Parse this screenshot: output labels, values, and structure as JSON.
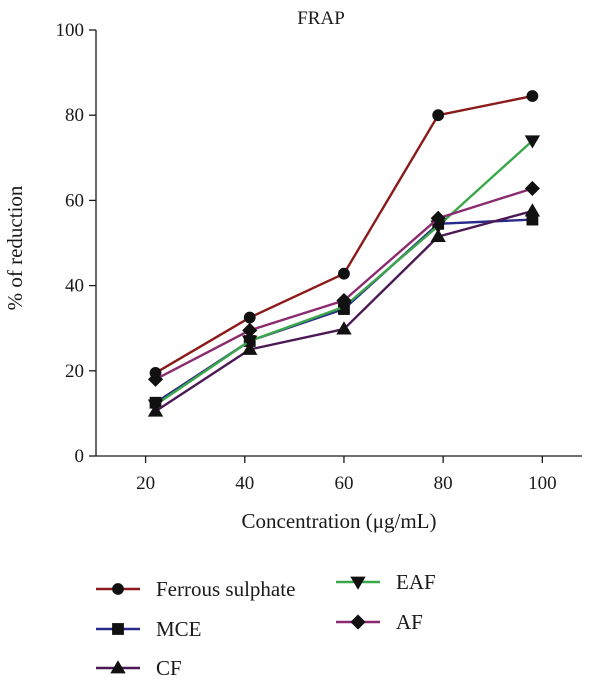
{
  "chart_data": {
    "type": "line",
    "title": "FRAP",
    "xlabel": "Concentration (μg/mL)",
    "ylabel": "% of reduction",
    "xlim": [
      10,
      108
    ],
    "ylim": [
      0,
      100
    ],
    "x_ticks": [
      "20",
      "40",
      "60",
      "80",
      "100"
    ],
    "y_ticks": [
      "0",
      "20",
      "40",
      "60",
      "80",
      "100"
    ],
    "x": [
      22,
      41,
      60,
      79,
      98
    ],
    "grid": false,
    "legend_position": "bottom",
    "series": [
      {
        "name": "Ferrous sulphate",
        "color": "#8b1a1a",
        "marker": "circle",
        "values": [
          19.5,
          32.5,
          42.8,
          80.0,
          84.5
        ]
      },
      {
        "name": "MCE",
        "color": "#2a2a8a",
        "marker": "square",
        "values": [
          12.5,
          27.0,
          34.5,
          54.5,
          55.5
        ]
      },
      {
        "name": "CF",
        "color": "#4b1a55",
        "marker": "triangle-up",
        "values": [
          10.5,
          25.0,
          29.8,
          51.5,
          57.5
        ]
      },
      {
        "name": "EAF",
        "color": "#3aa84a",
        "marker": "triangle-down",
        "values": [
          12.0,
          27.0,
          35.0,
          54.0,
          74.0
        ]
      },
      {
        "name": "AF",
        "color": "#8b2a6e",
        "marker": "diamond",
        "values": [
          18.0,
          29.5,
          36.5,
          55.8,
          62.8
        ]
      }
    ]
  }
}
